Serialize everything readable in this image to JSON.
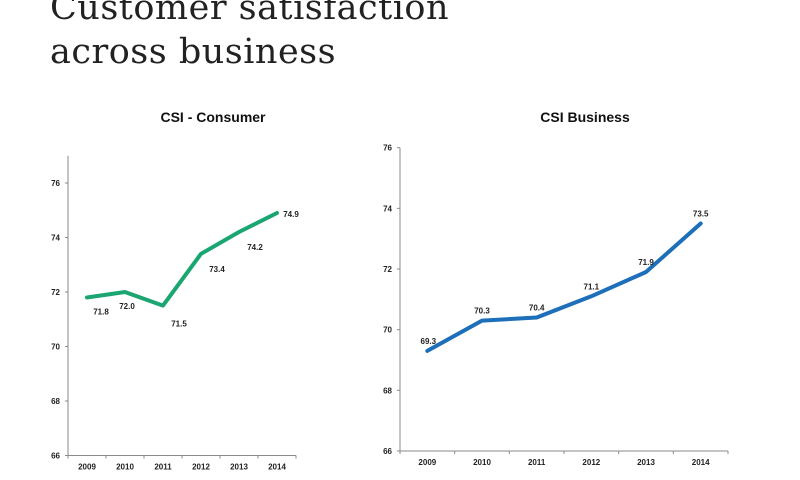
{
  "slide": {
    "title_line1": "Customer satisfaction",
    "title_line2": "across business"
  },
  "chart_data": [
    {
      "type": "line",
      "title": "CSI - Consumer",
      "categories": [
        "2009",
        "2010",
        "2011",
        "2012",
        "2013",
        "2014"
      ],
      "series": [
        {
          "values": [
            71.8,
            72.0,
            71.5,
            73.4,
            74.2,
            74.9
          ],
          "color": "#1aa571"
        }
      ],
      "data_labels": [
        "71.8",
        "72.0",
        "71.5",
        "73.4",
        "74.2",
        "74.9"
      ],
      "ylim": [
        66,
        77
      ],
      "yticks": [
        66,
        68,
        70,
        72,
        74,
        76
      ],
      "grid": false,
      "legend": false
    },
    {
      "type": "line",
      "title": "CSI Business",
      "categories": [
        "2009",
        "2010",
        "2011",
        "2012",
        "2013",
        "2014"
      ],
      "series": [
        {
          "values": [
            69.3,
            70.3,
            70.4,
            71.1,
            71.9,
            73.5
          ],
          "color": "#1c6fb8"
        }
      ],
      "data_labels": [
        "69.3",
        "70.3",
        "70.4",
        "71.1",
        "71.9",
        "73.5"
      ],
      "ylim": [
        66,
        76
      ],
      "yticks": [
        66,
        68,
        70,
        72,
        74,
        76
      ],
      "grid": false,
      "legend": false
    }
  ]
}
